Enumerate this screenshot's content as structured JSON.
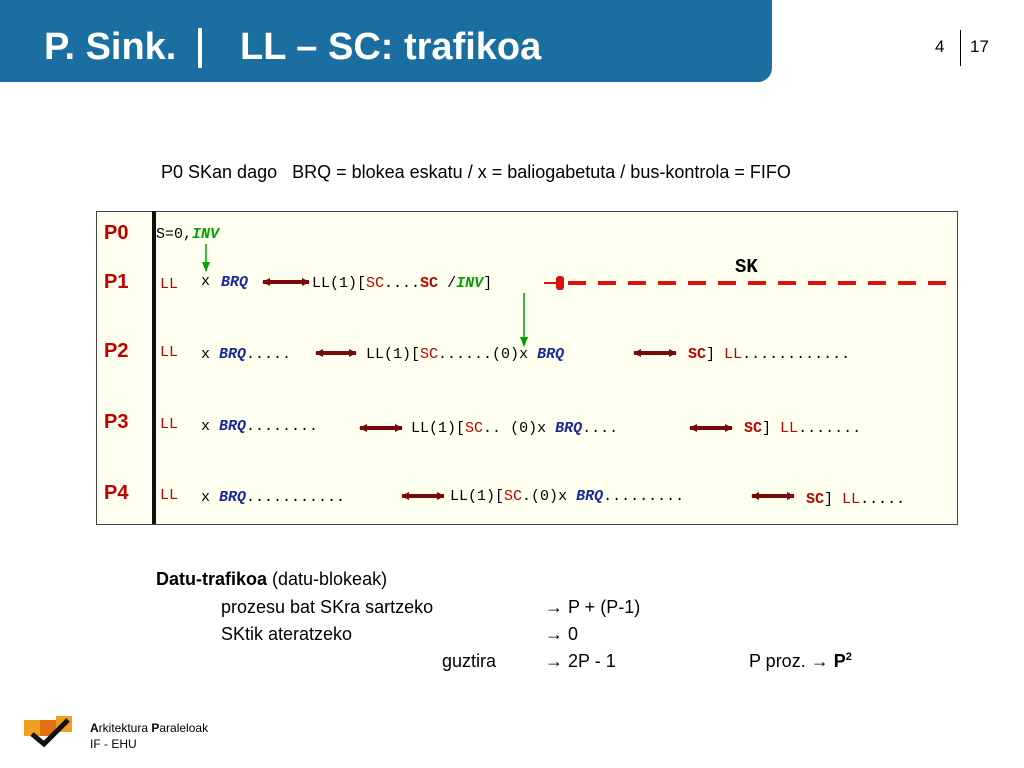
{
  "header": {
    "left": "P. Sink.",
    "title": "LL – SC: trafikoa",
    "page": "4",
    "total": "17"
  },
  "subtitle": "P0 SKan dago   BRQ = blokea eskatu / x = baliogabetuta / bus-kontrola = FIFO",
  "processes": [
    "P0",
    "P1",
    "P2",
    "P3",
    "P4"
  ],
  "tokens": {
    "s0": "S=0,",
    "inv": "INV",
    "ll": "LL",
    "x": "x",
    "brq": "BRQ",
    "sc": "SC",
    "sk": "SK",
    "ll1": "LL(1)[",
    "zero": "(0)",
    "bracket": "]",
    "slash": " /",
    "p1_dots": "....",
    "p2_dots_a": ".....",
    "p2_dots_b": "......",
    "p2_dots_c": "............",
    "p3_dots_a": "........",
    "p3_dots_b": "..",
    "p3_dots_c": "....",
    "p3_dots_d": ".......",
    "p4_dots_a": "...........",
    "p4_dots_b": ".",
    "p4_dots_c": ".........",
    "p4_dots_d": "....."
  },
  "traffic": {
    "title": "Datu-trafikoa",
    "title_suffix": " (datu-blokeak)",
    "rows": [
      {
        "label": "prozesu bat SKra sartzeko",
        "value": "→ P + (P-1)"
      },
      {
        "label": "SKtik ateratzeko",
        "value": "→ 0"
      }
    ],
    "total_label": "guztira",
    "total_value": "→ 2P - 1",
    "proc_label": "P proz. →",
    "proc_value": "P",
    "proc_exp": "2"
  },
  "footer": {
    "line1_a": "A",
    "line1_b": "rkitektura ",
    "line1_c": "P",
    "line1_d": "araleloak",
    "line2": "IF - EHU"
  },
  "colors": {
    "header": "#1b6fa0",
    "red": "#c00000",
    "blue": "#1a2a9a",
    "green": "#00a000",
    "arrow": "#7a0a0a"
  }
}
